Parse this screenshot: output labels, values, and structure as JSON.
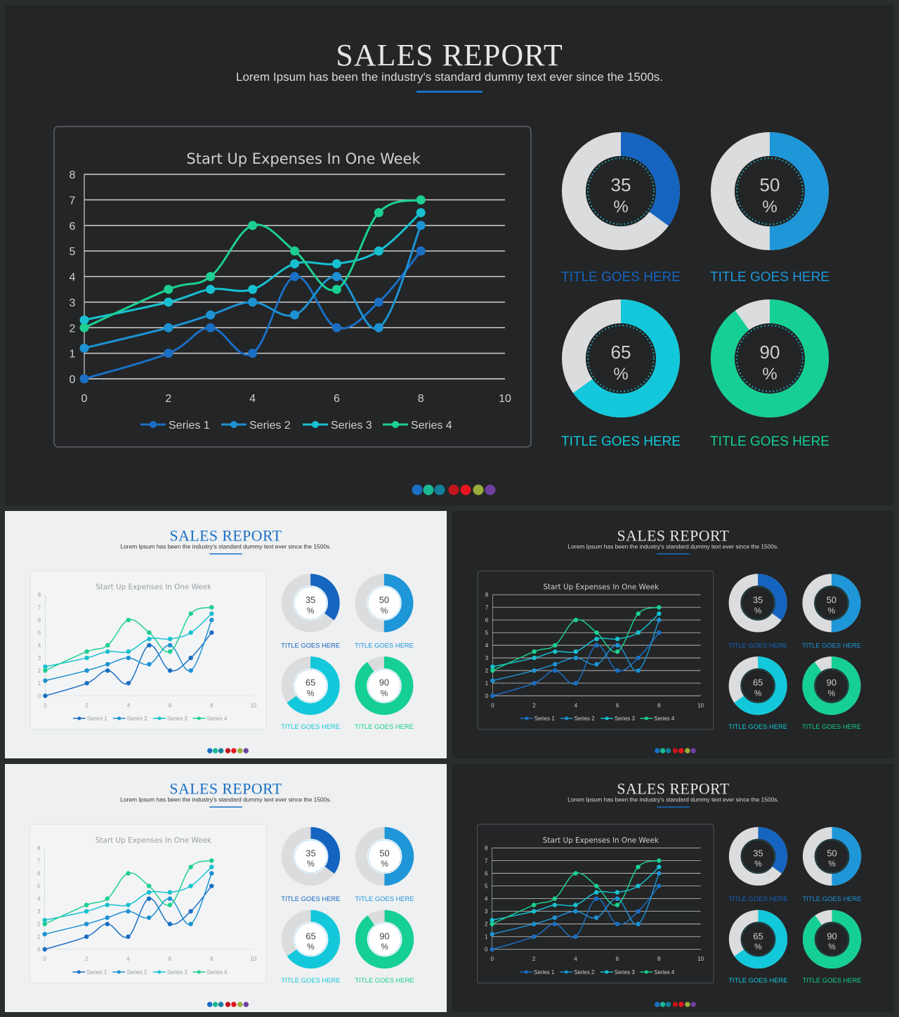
{
  "slides": [
    {
      "theme": "dark"
    },
    {
      "theme": "light"
    },
    {
      "theme": "dark"
    },
    {
      "theme": "light"
    },
    {
      "theme": "dark"
    }
  ],
  "report": {
    "title": "SALES REPORT",
    "subtitle": "Lorem Ipsum has been the industry's standard dummy text ever since the 1500s."
  },
  "chart_data": {
    "type": "line",
    "title": "Start Up Expenses In One Week",
    "xlabel": "",
    "ylabel": "",
    "xlim": [
      0,
      10
    ],
    "ylim": [
      0,
      8
    ],
    "x_ticks": [
      "0",
      "2",
      "4",
      "6",
      "8",
      "10"
    ],
    "y_ticks": [
      "0",
      "1",
      "2",
      "3",
      "4",
      "5",
      "6",
      "7",
      "8"
    ],
    "grid": true,
    "legend": "bottom",
    "series": [
      {
        "name": "Series 1",
        "color": "#1a6fc4",
        "x": [
          0,
          2,
          3,
          4,
          5,
          6,
          7,
          8
        ],
        "y": [
          0,
          1,
          2,
          1,
          4,
          2,
          3,
          5
        ]
      },
      {
        "name": "Series 2",
        "color": "#1c92d2",
        "x": [
          0,
          2,
          3,
          4,
          5,
          6,
          7,
          8
        ],
        "y": [
          1.2,
          2,
          2.5,
          3,
          2.5,
          4,
          2,
          6
        ]
      },
      {
        "name": "Series 3",
        "color": "#17c0d1",
        "x": [
          0,
          2,
          3,
          4,
          5,
          6,
          7,
          8
        ],
        "y": [
          2.3,
          3,
          3.5,
          3.5,
          4.5,
          4.5,
          5,
          6.5
        ]
      },
      {
        "name": "Series 4",
        "color": "#1ccf92",
        "x": [
          0,
          2,
          3,
          4,
          5,
          6,
          7,
          8
        ],
        "y": [
          2,
          3.5,
          4,
          6,
          5,
          3.5,
          6.5,
          7
        ]
      }
    ]
  },
  "donuts": [
    {
      "value": 35,
      "unit": "%",
      "label": "TITLE GOES HERE",
      "color": "#1565c0"
    },
    {
      "value": 50,
      "unit": "%",
      "label": "TITLE GOES HERE",
      "color": "#1e96d8"
    },
    {
      "value": 65,
      "unit": "%",
      "label": "TITLE GOES HERE",
      "color": "#12c8da"
    },
    {
      "value": 90,
      "unit": "%",
      "label": "TITLE GOES HERE",
      "color": "#16cf94"
    }
  ],
  "colors": {
    "accent": "#1a6fc4",
    "dark_bg": "#232526",
    "light_bg": "#eef0f1",
    "donut_track": "#dadcdd",
    "dots": [
      "#1a6fc4",
      "#17b993",
      "#137e9d",
      "#c2161d",
      "#e5161e",
      "#99ad3a",
      "#6f3fa0"
    ]
  }
}
